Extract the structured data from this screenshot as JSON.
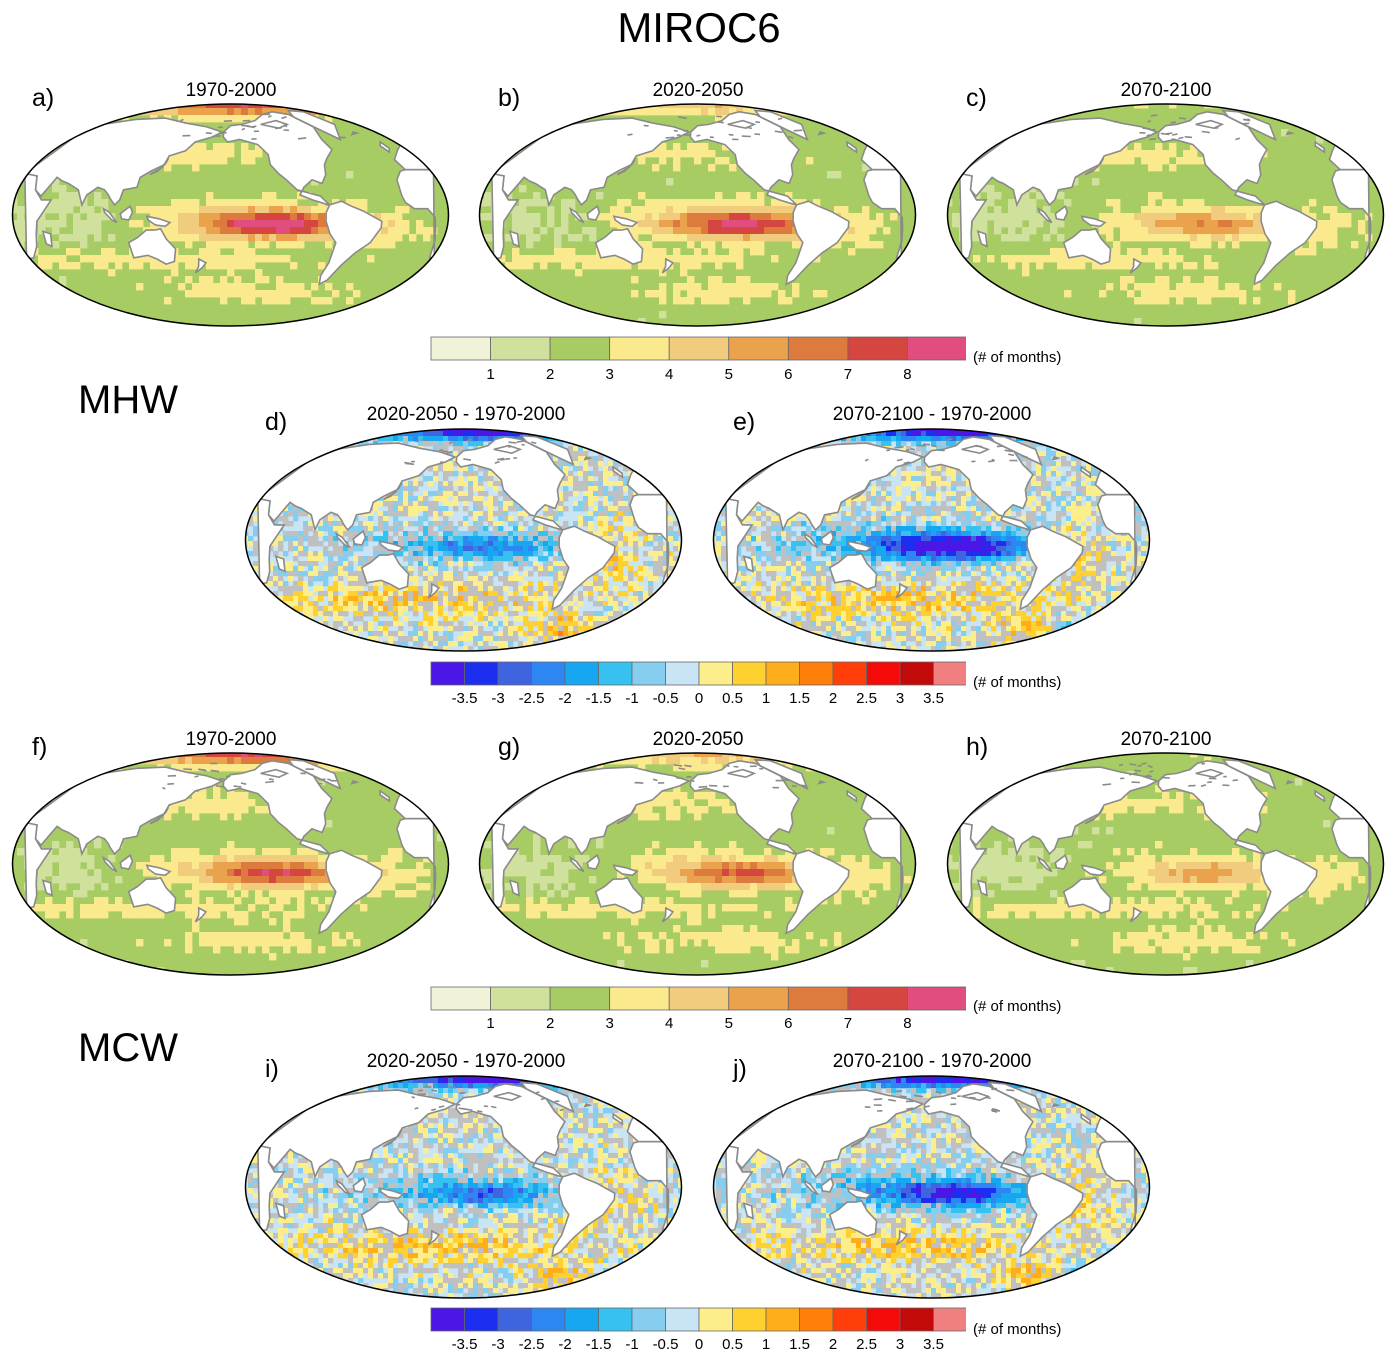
{
  "title": "MIROC6",
  "sections": {
    "mhw": "MHW",
    "mcw": "MCW"
  },
  "panels": [
    {
      "letter": "a)",
      "title": "1970-2000",
      "kind": "abs",
      "intensity": 1.0,
      "polar": 0.85
    },
    {
      "letter": "b)",
      "title": "2020-2050",
      "kind": "abs",
      "intensity": 0.9,
      "polar": 0.35
    },
    {
      "letter": "c)",
      "title": "2070-2100",
      "kind": "abs",
      "intensity": 0.55,
      "polar": 0.05
    },
    {
      "letter": "d)",
      "title": "2020-2050 - 1970-2000",
      "kind": "diff",
      "intensity": 0.45
    },
    {
      "letter": "e)",
      "title": "2070-2100 - 1970-2000",
      "kind": "diff",
      "intensity": 0.95
    },
    {
      "letter": "f)",
      "title": "1970-2000",
      "kind": "abs",
      "intensity": 0.8,
      "polar": 0.85
    },
    {
      "letter": "g)",
      "title": "2020-2050",
      "kind": "abs",
      "intensity": 0.7,
      "polar": 0.4
    },
    {
      "letter": "h)",
      "title": "2070-2100",
      "kind": "abs",
      "intensity": 0.45,
      "polar": 0.05
    },
    {
      "letter": "i)",
      "title": "2020-2050 - 1970-2000",
      "kind": "diff",
      "intensity": 0.5
    },
    {
      "letter": "j)",
      "title": "2070-2100 - 1970-2000",
      "kind": "diff",
      "intensity": 0.75
    }
  ],
  "colorbars": {
    "absolute": {
      "unit": "(# of months)",
      "ticks": [
        "1",
        "2",
        "3",
        "4",
        "5",
        "6",
        "7",
        "8"
      ],
      "colors": [
        "#f0f3d7",
        "#cfe19c",
        "#a8cc64",
        "#fbe98d",
        "#f2cc7e",
        "#eba24d",
        "#dd7b3e",
        "#d4463f",
        "#e24d7f"
      ]
    },
    "difference": {
      "unit": "(# of months)",
      "ticks": [
        "-3.5",
        "-3",
        "-2.5",
        "-2",
        "-1.5",
        "-1",
        "-0.5",
        "0",
        "0.5",
        "1",
        "1.5",
        "2",
        "2.5",
        "3",
        "3.5"
      ],
      "colors": [
        "#4a17e6",
        "#1c2ff0",
        "#3f64e0",
        "#2e86f3",
        "#17a6f0",
        "#37c1f0",
        "#85cef0",
        "#c9e5f5",
        "#fcee8a",
        "#ffd130",
        "#ffae1b",
        "#ff7f0a",
        "#ff3e0a",
        "#f50a0a",
        "#c30a0a",
        "#f08080"
      ]
    }
  },
  "map_colors": {
    "land": "#ffffff",
    "coast": "#8a8a8a",
    "border": "#000000",
    "insignificant": "#c0c0c0"
  }
}
